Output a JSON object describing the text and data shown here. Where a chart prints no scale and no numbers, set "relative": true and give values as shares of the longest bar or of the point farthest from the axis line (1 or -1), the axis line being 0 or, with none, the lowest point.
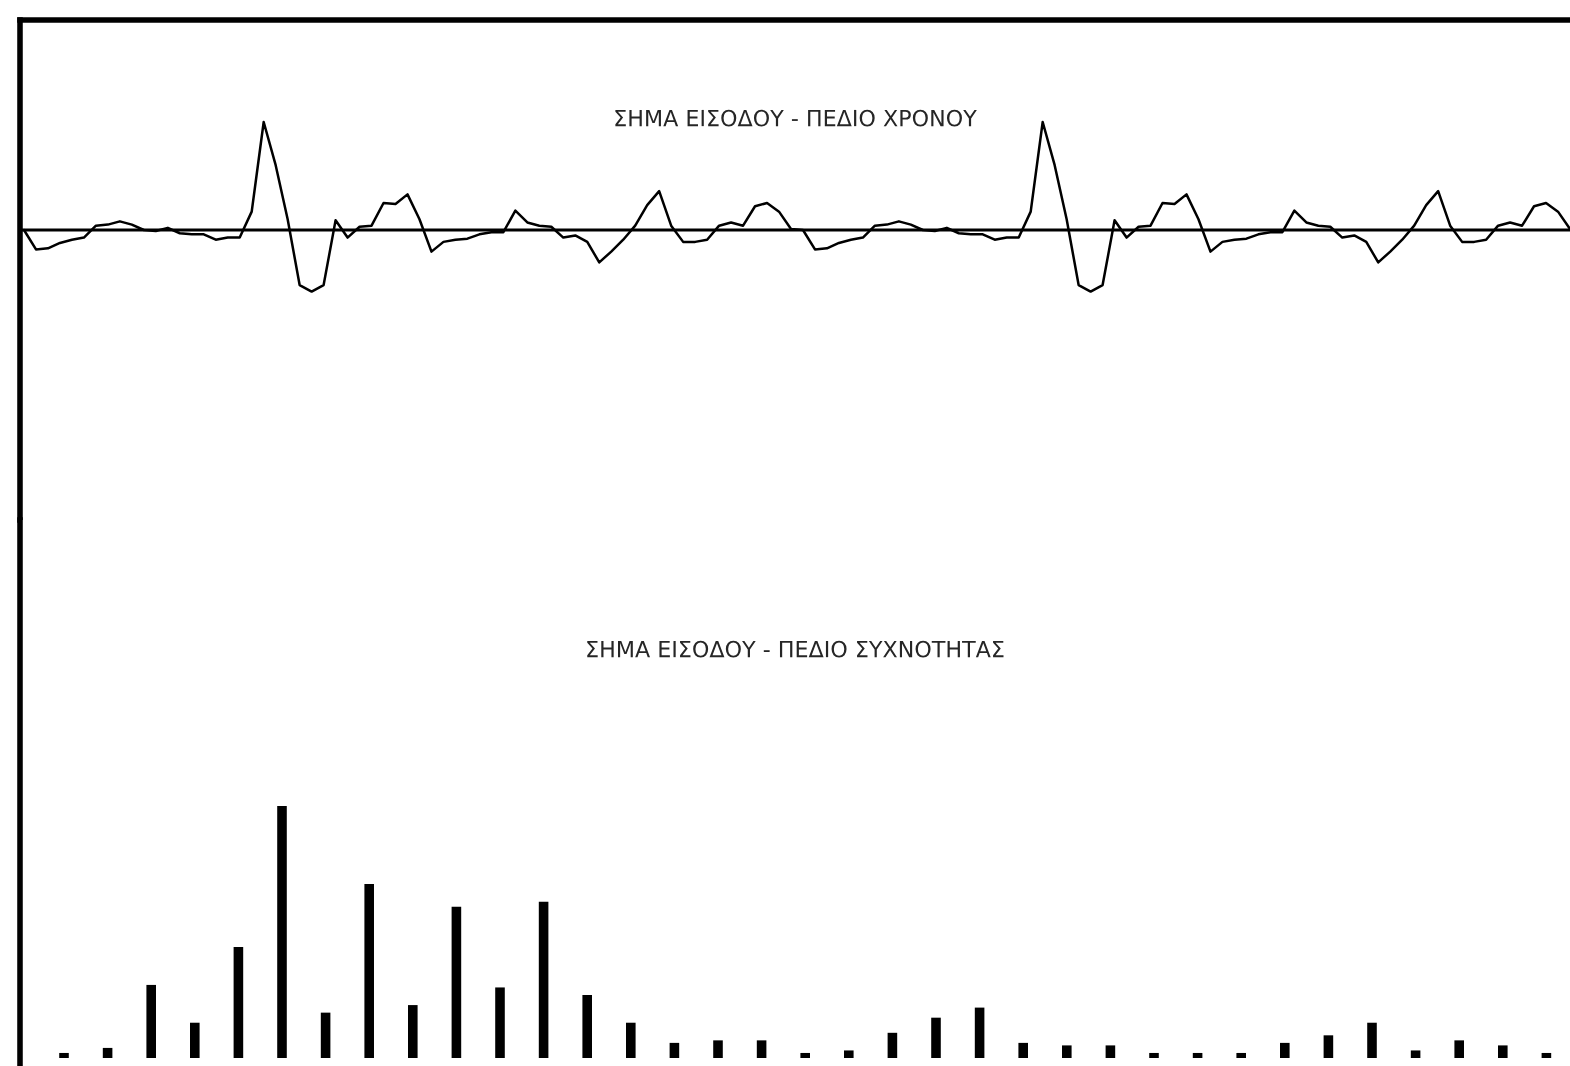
{
  "chart_data": [
    {
      "type": "line",
      "title": "ΣΗΜΑ ΕΙΣΟΔΟΥ - ΠΕΔΙΟ ΧΡΟΝΟΥ",
      "relative": true,
      "marker": "none",
      "line_style": "solid",
      "categories": [
        null,
        null,
        null,
        null,
        null,
        null,
        null,
        null,
        null,
        null,
        null,
        null,
        null,
        null,
        null,
        null,
        null,
        null,
        null,
        null,
        null,
        null,
        null,
        null,
        null,
        null,
        null,
        null,
        null,
        null,
        null,
        null,
        null,
        null,
        null,
        null,
        null,
        null,
        null,
        null,
        null,
        null,
        null,
        null,
        null,
        null,
        null,
        null,
        null,
        null,
        null,
        null,
        null,
        null,
        null,
        null,
        null,
        null,
        null,
        null,
        null,
        null,
        null,
        null,
        null,
        null,
        null,
        null,
        null,
        null,
        null,
        null,
        null,
        null,
        null,
        null,
        null,
        null,
        null,
        null,
        null,
        null,
        null,
        null,
        null,
        null,
        null,
        null,
        null,
        null,
        null,
        null,
        null,
        null,
        null,
        null,
        null,
        null,
        null,
        null,
        null,
        null,
        null,
        null,
        null,
        null,
        null,
        null,
        null,
        null,
        null,
        null,
        null,
        null,
        null,
        null,
        null,
        null,
        null,
        null,
        null,
        null,
        null,
        null,
        null,
        null,
        null,
        null,
        null,
        null
      ],
      "series": [
        {
          "color": "#000000",
          "values": [
            0,
            -0.18,
            -0.17,
            -0.12,
            -0.09,
            -0.07,
            0.04,
            0.05,
            0.08,
            0.05,
            0,
            -0.01,
            0.02,
            -0.03,
            -0.04,
            -0.04,
            -0.09,
            -0.07,
            -0.07,
            0.17,
            1,
            0.6,
            0.1,
            -0.51,
            -0.57,
            -0.51,
            0.09,
            -0.07,
            0.03,
            0.04,
            0.25,
            0.24,
            0.33,
            0.1,
            -0.2,
            -0.11,
            -0.09,
            -0.08,
            -0.04,
            -0.02,
            -0.02,
            0.18,
            0.07,
            0.04,
            0.03,
            -0.07,
            -0.05,
            -0.11,
            -0.3,
            -0.2,
            -0.09,
            0.04,
            0.23,
            0.36,
            0.04,
            -0.11,
            -0.11,
            -0.09,
            0.04,
            0.07,
            0.04,
            0.22,
            0.25,
            0.17,
            0.01,
            0,
            -0.18,
            -0.17,
            -0.12,
            -0.09,
            -0.07,
            0.04,
            0.05,
            0.08,
            0.05,
            0,
            -0.01,
            0.02,
            -0.03,
            -0.04,
            -0.04,
            -0.09,
            -0.07,
            -0.07,
            0.17,
            1,
            0.6,
            0.1,
            -0.51,
            -0.57,
            -0.51,
            0.09,
            -0.07,
            0.03,
            0.04,
            0.25,
            0.24,
            0.33,
            0.1,
            -0.2,
            -0.11,
            -0.09,
            -0.08,
            -0.04,
            -0.02,
            -0.02,
            0.18,
            0.07,
            0.04,
            0.03,
            -0.07,
            -0.05,
            -0.11,
            -0.3,
            -0.2,
            -0.09,
            0.04,
            0.23,
            0.36,
            0.04,
            -0.11,
            -0.11,
            -0.09,
            0.04,
            0.07,
            0.04,
            0.22,
            0.25,
            0.17,
            0.01
          ]
        }
      ]
    },
    {
      "type": "bar",
      "title": "ΣΗΜΑ ΕΙΣΟΔΟΥ - ΠΕΔΙΟ ΣΥΧΝΟΤΗΤΑΣ",
      "relative": true,
      "categories": [
        null,
        null,
        null,
        null,
        null,
        null,
        null,
        null,
        null,
        null,
        null,
        null,
        null,
        null,
        null,
        null,
        null,
        null,
        null,
        null,
        null,
        null,
        null,
        null,
        null,
        null,
        null,
        null,
        null,
        null,
        null,
        null,
        null,
        null,
        null
      ],
      "color": "#000000",
      "values": [
        0.02,
        0.04,
        0.29,
        0.14,
        0.44,
        1,
        0.18,
        0.69,
        0.21,
        0.6,
        0.28,
        0.62,
        0.25,
        0.14,
        0.06,
        0.07,
        0.07,
        0.02,
        0.03,
        0.1,
        0.16,
        0.2,
        0.06,
        0.05,
        0.05,
        0.02,
        0.02,
        0.02,
        0.06,
        0.09,
        0.14,
        0.03,
        0.07,
        0.05,
        0.02
      ]
    }
  ]
}
